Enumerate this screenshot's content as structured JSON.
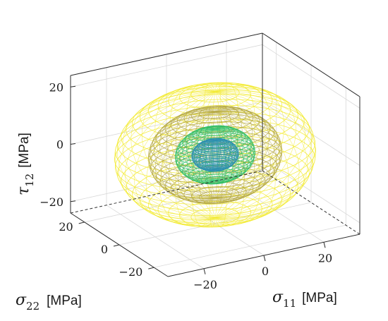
{
  "chart_data": {
    "type": "3d-surface",
    "axes": {
      "x": {
        "symbol": "σ",
        "subscript": "11",
        "unit": "[MPa]",
        "ticks": [
          -20,
          0,
          20
        ],
        "range": [
          -32,
          32
        ]
      },
      "y": {
        "symbol": "σ",
        "subscript": "22",
        "unit": "[MPa]",
        "ticks": [
          -20,
          0,
          20
        ],
        "range": [
          -28,
          28
        ]
      },
      "z": {
        "symbol": "τ",
        "subscript": "12",
        "unit": "[MPa]",
        "ticks": [
          -20,
          0,
          20
        ],
        "range": [
          -24,
          24
        ]
      }
    },
    "surfaces": [
      {
        "shape": "ellipsoid",
        "semi_axes": [
          30,
          26,
          22
        ],
        "color": "#f2ea2a",
        "hole_radius_fraction": 0.62
      },
      {
        "shape": "ellipsoid",
        "semi_axes": [
          20,
          17,
          15
        ],
        "color": "#b3a640",
        "hole_radius_fraction": 0.45
      },
      {
        "shape": "ellipsoid",
        "semi_axes": [
          12,
          10,
          9
        ],
        "color": "#2fbf6a",
        "hole_radius_fraction": 0.55
      },
      {
        "shape": "ellipsoid",
        "semi_axes": [
          7,
          6,
          5
        ],
        "color": "#2c8fb0",
        "hole_radius_fraction": 0.45
      }
    ],
    "grid": true,
    "tick_labels": {
      "x": [
        "−20",
        "0",
        "20"
      ],
      "y": [
        "−20",
        "0",
        "20"
      ],
      "z": [
        "−20",
        "0",
        "20"
      ]
    }
  }
}
